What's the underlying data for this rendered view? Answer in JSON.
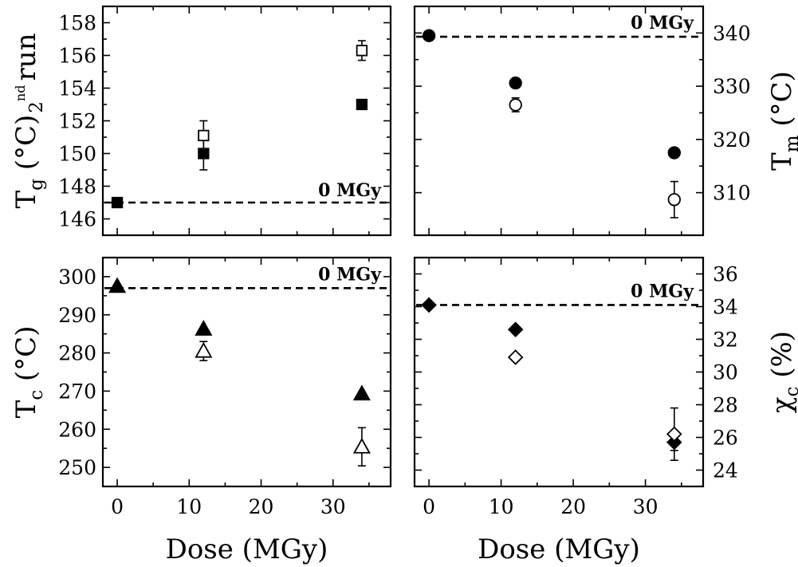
{
  "chart_data": [
    {
      "id": "tg",
      "type": "scatter",
      "ylabel_main": "T",
      "ylabel_sub": "g",
      "ylabel_rest": "(°C)",
      "ylabel_run_sub": "2",
      "ylabel_run_sup": "nd",
      "ylabel_run_word": "run",
      "ylabel_side": "left",
      "xlim": [
        -2,
        38
      ],
      "ylim": [
        145,
        159
      ],
      "yticks": [
        "146",
        "148",
        "150",
        "152",
        "154",
        "156",
        "158"
      ],
      "xticks": [
        "0",
        "10",
        "20",
        "30"
      ],
      "show_x_tick_labels": false,
      "reference": {
        "value": 147,
        "label": "0 MGy",
        "label_position": "bottom-right"
      },
      "series": [
        {
          "marker": "square",
          "filled": true,
          "points": [
            {
              "x": 0,
              "y": 147,
              "err": 0
            },
            {
              "x": 12,
              "y": 150,
              "err": 1
            },
            {
              "x": 34,
              "y": 153,
              "err": 0
            }
          ]
        },
        {
          "marker": "square",
          "filled": false,
          "points": [
            {
              "x": 12,
              "y": 151.1,
              "err": 0.9
            },
            {
              "x": 34,
              "y": 156.3,
              "err": 0.6
            }
          ]
        }
      ]
    },
    {
      "id": "tm",
      "type": "scatter",
      "ylabel_main": "T",
      "ylabel_sub": "m",
      "ylabel_rest": "(°C)",
      "ylabel_side": "right",
      "xlim": [
        -2,
        38
      ],
      "ylim": [
        302,
        345
      ],
      "yticks": [
        "310",
        "320",
        "330",
        "340"
      ],
      "xticks": [
        "0",
        "10",
        "20",
        "30"
      ],
      "show_x_tick_labels": false,
      "reference": {
        "value": 339.3,
        "label": "0 MGy",
        "label_position": "top-right"
      },
      "series": [
        {
          "marker": "circle",
          "filled": true,
          "points": [
            {
              "x": 0,
              "y": 339.5,
              "err": 0
            },
            {
              "x": 12,
              "y": 330.6,
              "err": 0
            },
            {
              "x": 34,
              "y": 317.5,
              "err": 0
            }
          ]
        },
        {
          "marker": "circle",
          "filled": false,
          "points": [
            {
              "x": 12,
              "y": 326.5,
              "err": 1.3
            },
            {
              "x": 34,
              "y": 308.7,
              "err": 3.4
            }
          ]
        }
      ]
    },
    {
      "id": "tc",
      "type": "scatter",
      "ylabel_main": "T",
      "ylabel_sub": "c",
      "ylabel_rest": "(°C)",
      "ylabel_side": "left",
      "xlim": [
        -2,
        38
      ],
      "ylim": [
        245,
        305
      ],
      "yticks": [
        "250",
        "260",
        "270",
        "280",
        "290",
        "300"
      ],
      "xticks": [
        "0",
        "10",
        "20",
        "30"
      ],
      "show_x_tick_labels": true,
      "xlabel": "Dose (MGy)",
      "reference": {
        "value": 297,
        "label": "0 MGy",
        "label_position": "top-right"
      },
      "series": [
        {
          "marker": "triangle",
          "filled": true,
          "points": [
            {
              "x": 0,
              "y": 297.5,
              "err": 0
            },
            {
              "x": 12,
              "y": 286.3,
              "err": 0
            },
            {
              "x": 34,
              "y": 269.3,
              "err": 0
            }
          ]
        },
        {
          "marker": "triangle",
          "filled": false,
          "points": [
            {
              "x": 12,
              "y": 280.5,
              "err": 2.5
            },
            {
              "x": 34,
              "y": 255.4,
              "err": 5
            }
          ]
        }
      ]
    },
    {
      "id": "xc",
      "type": "scatter",
      "ylabel_main": "χ",
      "ylabel_sub": "c",
      "ylabel_rest": "(%)",
      "ylabel_side": "right",
      "xlim": [
        -2,
        38
      ],
      "ylim": [
        23,
        37
      ],
      "yticks": [
        "24",
        "26",
        "28",
        "30",
        "32",
        "34",
        "36"
      ],
      "xticks": [
        "0",
        "10",
        "20",
        "30"
      ],
      "show_x_tick_labels": true,
      "xlabel": "Dose (MGy)",
      "reference": {
        "value": 34.1,
        "label": "0 MGy",
        "label_position": "top-right"
      },
      "series": [
        {
          "marker": "diamond",
          "filled": true,
          "points": [
            {
              "x": 0,
              "y": 34.1,
              "err": 0
            },
            {
              "x": 12,
              "y": 32.6,
              "err": 0
            },
            {
              "x": 34,
              "y": 25.7,
              "err": 0.5
            }
          ]
        },
        {
          "marker": "diamond",
          "filled": false,
          "points": [
            {
              "x": 12,
              "y": 30.9,
              "err": 0
            },
            {
              "x": 34,
              "y": 26.2,
              "err": 1.6
            }
          ]
        }
      ]
    }
  ]
}
